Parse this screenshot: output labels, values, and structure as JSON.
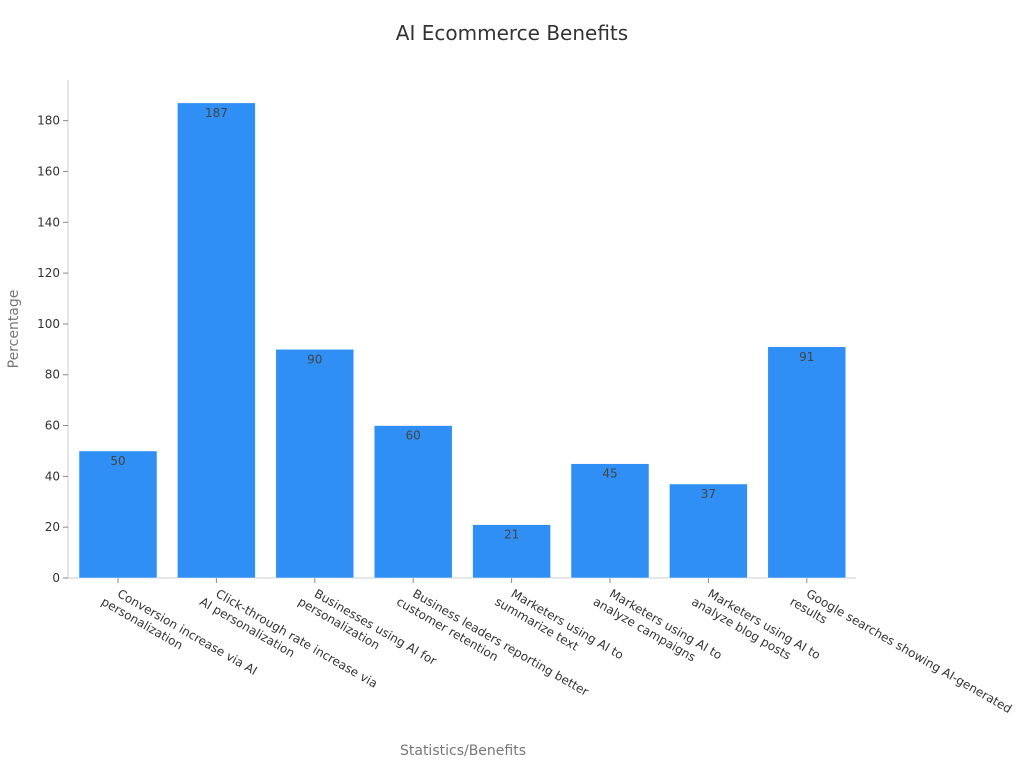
{
  "chart_data": {
    "type": "bar",
    "title": "AI Ecommerce Benefits",
    "xlabel": "Statistics/Benefits",
    "ylabel": "Percentage",
    "categories": [
      [
        "Conversion increase via AI",
        "personalization"
      ],
      [
        "Click-through rate increase via",
        "AI personalization"
      ],
      [
        "Businesses using AI for",
        "personalization"
      ],
      [
        "Business leaders reporting better",
        "customer retention"
      ],
      [
        "Marketers using AI to",
        "summarize text"
      ],
      [
        "Marketers using AI to",
        "analyze campaigns"
      ],
      [
        "Marketers using AI to",
        "analyze blog posts"
      ],
      [
        "Google searches showing AI-generated",
        "results"
      ]
    ],
    "values": [
      50,
      187,
      90,
      60,
      21,
      45,
      37,
      91
    ],
    "ylim": [
      0,
      196
    ],
    "yticks": [
      0,
      20,
      40,
      60,
      80,
      100,
      120,
      140,
      160,
      180
    ],
    "bar_color": "#2f8ff5",
    "grid": false,
    "legend": "none"
  }
}
